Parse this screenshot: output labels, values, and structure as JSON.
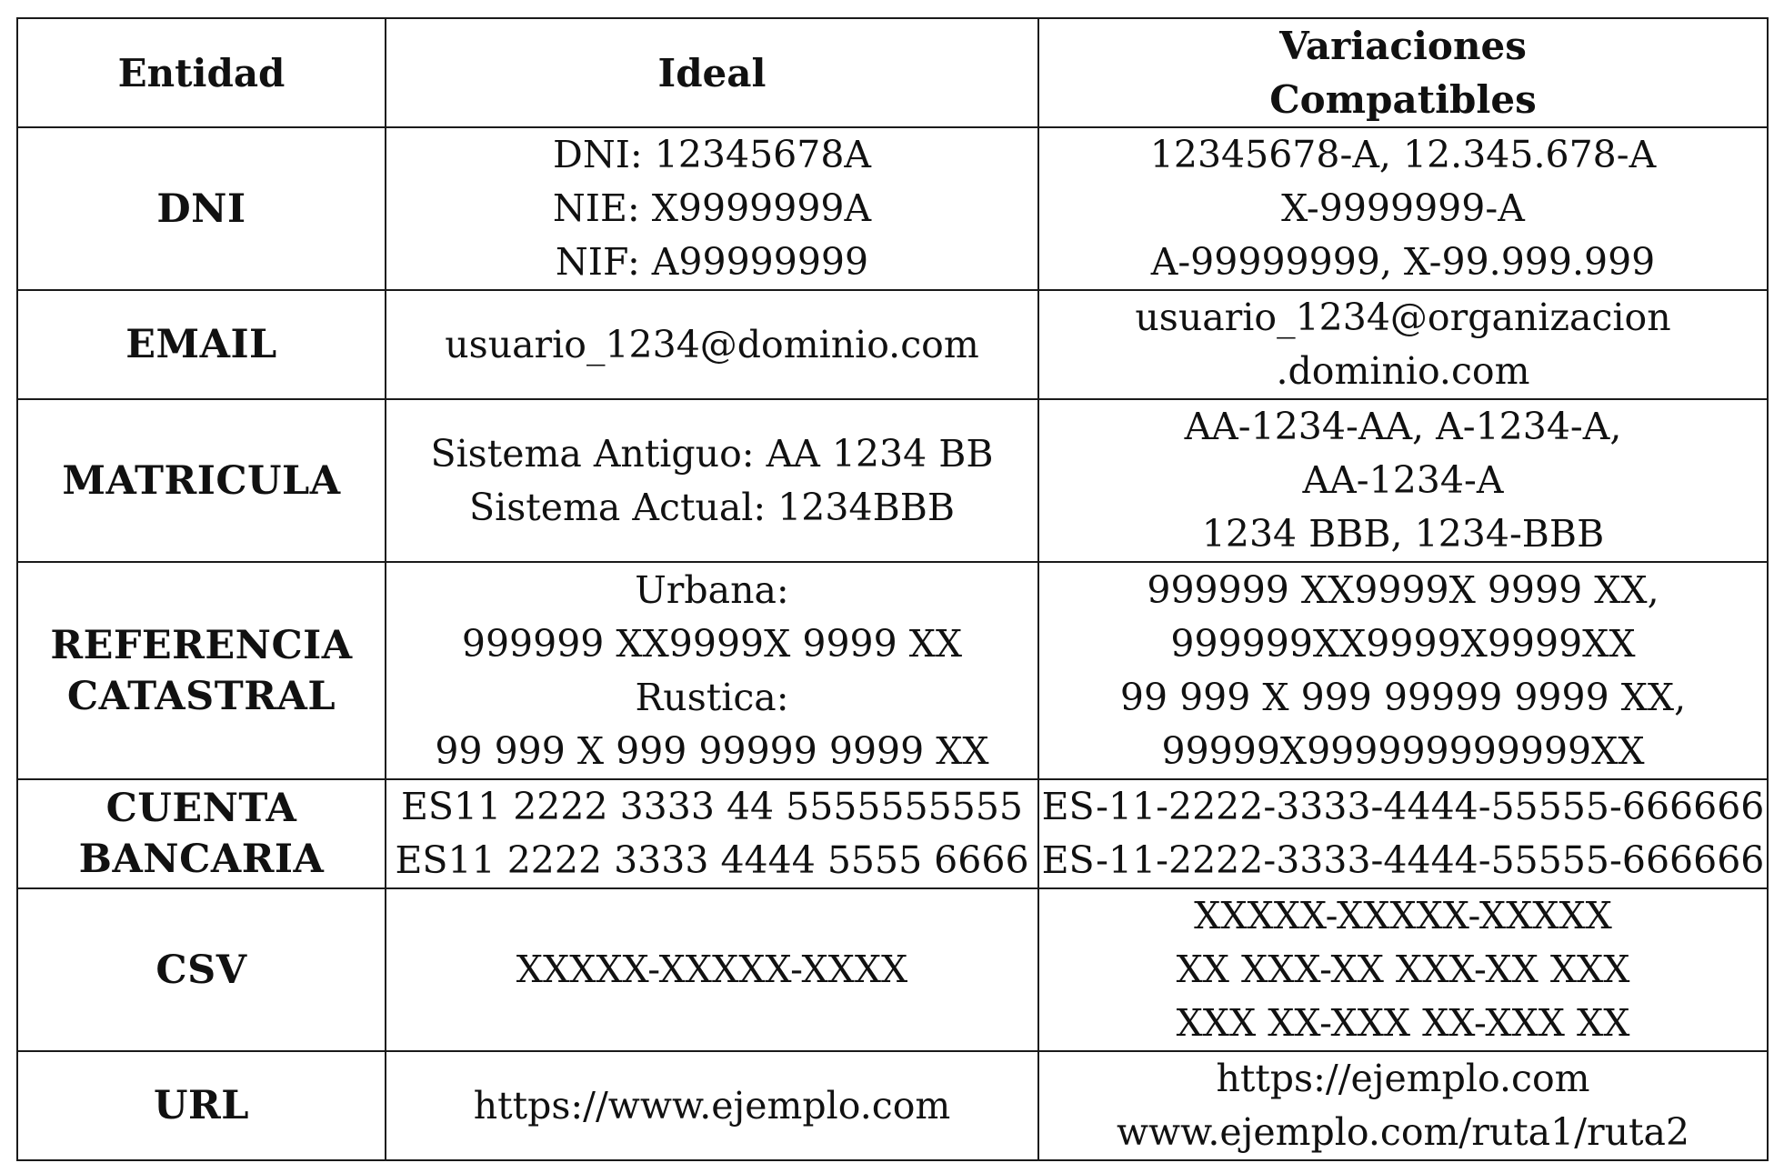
{
  "table": {
    "headers": {
      "entidad": "Entidad",
      "ideal": "Ideal",
      "variaciones": [
        "Variaciones",
        "Compatibles"
      ]
    },
    "rows": [
      {
        "entity": [
          "DNI"
        ],
        "ideal": [
          "DNI: 12345678A",
          "NIE: X9999999A",
          "NIF: A99999999"
        ],
        "variations": [
          "12345678-A, 12.345.678-A",
          "X-9999999-A",
          "A-99999999, X-99.999.999"
        ]
      },
      {
        "entity": [
          "EMAIL"
        ],
        "ideal": [
          "usuario_1234@dominio.com"
        ],
        "variations": [
          "usuario_1234@organizacion",
          ".dominio.com"
        ]
      },
      {
        "entity": [
          "MATRICULA"
        ],
        "ideal": [
          "Sistema Antiguo: AA 1234 BB",
          "Sistema Actual: 1234BBB"
        ],
        "variations": [
          "AA-1234-AA, A-1234-A,",
          "AA-1234-A",
          "1234 BBB, 1234-BBB"
        ]
      },
      {
        "entity": [
          "REFERENCIA",
          "CATASTRAL"
        ],
        "ideal": [
          "Urbana:",
          "999999 XX9999X 9999 XX",
          "Rustica:",
          "99 999 X 999 99999 9999 XX"
        ],
        "variations": [
          "999999 XX9999X 9999 XX,",
          "999999XX9999X9999XX",
          "99 999 X 999 99999 9999 XX,",
          "99999X999999999999XX"
        ]
      },
      {
        "entity": [
          "CUENTA",
          "BANCARIA"
        ],
        "ideal": [
          "ES11 2222 3333 44 5555555555",
          "ES11 2222 3333 4444 5555 6666"
        ],
        "variations": [
          "ES-11-2222-3333-4444-55555-666666",
          "ES-11-2222-3333-4444-55555-666666"
        ]
      },
      {
        "entity": [
          "CSV"
        ],
        "ideal": [
          "XXXXX-XXXXX-XXXX"
        ],
        "variations": [
          "XXXXX-XXXXX-XXXXX",
          "XX XXX-XX XXX-XX XXX",
          "XXX XX-XXX XX-XXX XX"
        ]
      },
      {
        "entity": [
          "URL"
        ],
        "ideal": [
          "https://www.ejemplo.com"
        ],
        "variations": [
          "https://ejemplo.com",
          "www.ejemplo.com/ruta1/ruta2"
        ]
      }
    ]
  }
}
